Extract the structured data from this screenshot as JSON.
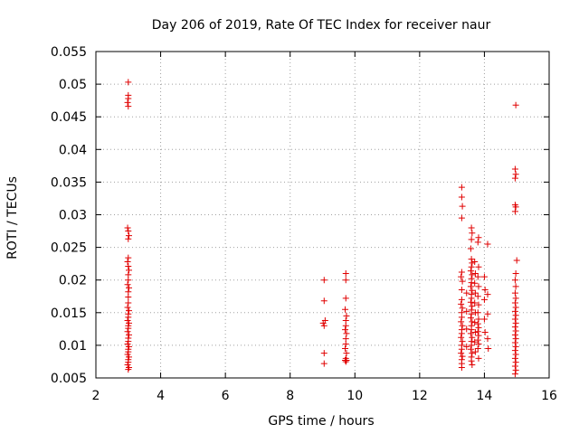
{
  "chart_data": {
    "type": "scatter",
    "title": "Day 206 of 2019, Rate Of TEC Index for receiver naur",
    "xlabel": "GPS time / hours",
    "ylabel": "ROTI / TECUs",
    "xlim": [
      2,
      16
    ],
    "ylim": [
      0.005,
      0.055
    ],
    "xticks": [
      2,
      4,
      6,
      8,
      10,
      12,
      14,
      16
    ],
    "xtick_labels": [
      "2",
      "4",
      "6",
      "8",
      "10",
      "12",
      "14",
      "16"
    ],
    "yticks": [
      0.005,
      0.01,
      0.015,
      0.02,
      0.025,
      0.03,
      0.035,
      0.04,
      0.045,
      0.05,
      0.055
    ],
    "ytick_labels": [
      "0.005",
      "0.01",
      "0.015",
      "0.02",
      "0.025",
      "0.03",
      "0.035",
      "0.04",
      "0.045",
      "0.05",
      "0.055"
    ],
    "grid": true,
    "marker": "+",
    "marker_color": "#e00000",
    "series": [
      {
        "name": "ROTI",
        "points": [
          [
            3.0,
            0.0503
          ],
          [
            3.0,
            0.0483
          ],
          [
            3.0,
            0.0478
          ],
          [
            2.98,
            0.0472
          ],
          [
            3.0,
            0.0466
          ],
          [
            2.98,
            0.028
          ],
          [
            3.0,
            0.0275
          ],
          [
            3.02,
            0.0268
          ],
          [
            3.0,
            0.0263
          ],
          [
            3.0,
            0.0234
          ],
          [
            2.98,
            0.0228
          ],
          [
            3.0,
            0.0221
          ],
          [
            3.02,
            0.0215
          ],
          [
            3.0,
            0.0208
          ],
          [
            3.0,
            0.02
          ],
          [
            2.98,
            0.0193
          ],
          [
            3.02,
            0.0188
          ],
          [
            3.0,
            0.0182
          ],
          [
            3.0,
            0.0174
          ],
          [
            3.0,
            0.0165
          ],
          [
            2.98,
            0.0158
          ],
          [
            3.02,
            0.0153
          ],
          [
            3.0,
            0.0148
          ],
          [
            3.0,
            0.0143
          ],
          [
            2.98,
            0.0138
          ],
          [
            3.02,
            0.0134
          ],
          [
            3.0,
            0.013
          ],
          [
            3.0,
            0.0126
          ],
          [
            2.98,
            0.0121
          ],
          [
            3.02,
            0.0116
          ],
          [
            3.0,
            0.0111
          ],
          [
            3.0,
            0.0106
          ],
          [
            2.98,
            0.0102
          ],
          [
            3.02,
            0.0098
          ],
          [
            3.0,
            0.0094
          ],
          [
            3.0,
            0.009
          ],
          [
            2.98,
            0.0086
          ],
          [
            3.02,
            0.0082
          ],
          [
            3.0,
            0.0078
          ],
          [
            3.0,
            0.0074
          ],
          [
            2.98,
            0.007
          ],
          [
            3.02,
            0.0066
          ],
          [
            3.0,
            0.0063
          ],
          [
            9.05,
            0.02
          ],
          [
            9.05,
            0.0168
          ],
          [
            9.08,
            0.0138
          ],
          [
            9.02,
            0.0134
          ],
          [
            9.05,
            0.013
          ],
          [
            9.05,
            0.0088
          ],
          [
            9.05,
            0.0072
          ],
          [
            9.72,
            0.021
          ],
          [
            9.72,
            0.02
          ],
          [
            9.72,
            0.0172
          ],
          [
            9.7,
            0.0155
          ],
          [
            9.74,
            0.0145
          ],
          [
            9.72,
            0.0138
          ],
          [
            9.72,
            0.013
          ],
          [
            9.7,
            0.0124
          ],
          [
            9.74,
            0.0118
          ],
          [
            9.72,
            0.011
          ],
          [
            9.72,
            0.0102
          ],
          [
            9.7,
            0.0095
          ],
          [
            9.74,
            0.0088
          ],
          [
            9.72,
            0.008
          ],
          [
            9.7,
            0.0077
          ],
          [
            9.74,
            0.0077
          ],
          [
            9.72,
            0.0075
          ],
          [
            13.3,
            0.0342
          ],
          [
            13.3,
            0.0327
          ],
          [
            13.32,
            0.0313
          ],
          [
            13.3,
            0.0295
          ],
          [
            13.3,
            0.0212
          ],
          [
            13.28,
            0.0205
          ],
          [
            13.32,
            0.0198
          ],
          [
            13.3,
            0.0185
          ],
          [
            13.3,
            0.017
          ],
          [
            13.28,
            0.0163
          ],
          [
            13.32,
            0.0157
          ],
          [
            13.3,
            0.015
          ],
          [
            13.3,
            0.0143
          ],
          [
            13.28,
            0.0136
          ],
          [
            13.32,
            0.013
          ],
          [
            13.3,
            0.0124
          ],
          [
            13.3,
            0.0118
          ],
          [
            13.28,
            0.0112
          ],
          [
            13.32,
            0.0106
          ],
          [
            13.3,
            0.01
          ],
          [
            13.3,
            0.0094
          ],
          [
            13.28,
            0.0088
          ],
          [
            13.32,
            0.0083
          ],
          [
            13.3,
            0.0078
          ],
          [
            13.3,
            0.0072
          ],
          [
            13.3,
            0.0066
          ],
          [
            13.45,
            0.018
          ],
          [
            13.45,
            0.0152
          ],
          [
            13.45,
            0.0125
          ],
          [
            13.45,
            0.0098
          ],
          [
            13.6,
            0.028
          ],
          [
            13.62,
            0.0272
          ],
          [
            13.6,
            0.0262
          ],
          [
            13.58,
            0.0248
          ],
          [
            13.6,
            0.0232
          ],
          [
            13.62,
            0.0226
          ],
          [
            13.6,
            0.022
          ],
          [
            13.58,
            0.0214
          ],
          [
            13.62,
            0.0208
          ],
          [
            13.6,
            0.0202
          ],
          [
            13.6,
            0.0196
          ],
          [
            13.58,
            0.019
          ],
          [
            13.62,
            0.0184
          ],
          [
            13.6,
            0.0178
          ],
          [
            13.6,
            0.0172
          ],
          [
            13.58,
            0.0166
          ],
          [
            13.62,
            0.016
          ],
          [
            13.6,
            0.0154
          ],
          [
            13.6,
            0.0148
          ],
          [
            13.58,
            0.0142
          ],
          [
            13.62,
            0.0136
          ],
          [
            13.6,
            0.013
          ],
          [
            13.6,
            0.0124
          ],
          [
            13.58,
            0.0118
          ],
          [
            13.62,
            0.0112
          ],
          [
            13.6,
            0.0106
          ],
          [
            13.6,
            0.01
          ],
          [
            13.58,
            0.0094
          ],
          [
            13.62,
            0.0088
          ],
          [
            13.6,
            0.0082
          ],
          [
            13.6,
            0.0076
          ],
          [
            13.62,
            0.007
          ],
          [
            13.7,
            0.0228
          ],
          [
            13.72,
            0.021
          ],
          [
            13.7,
            0.0195
          ],
          [
            13.72,
            0.018
          ],
          [
            13.7,
            0.0165
          ],
          [
            13.72,
            0.015
          ],
          [
            13.7,
            0.0135
          ],
          [
            13.72,
            0.012
          ],
          [
            13.7,
            0.0105
          ],
          [
            13.72,
            0.009
          ],
          [
            13.82,
            0.0265
          ],
          [
            13.8,
            0.0258
          ],
          [
            13.82,
            0.022
          ],
          [
            13.8,
            0.0205
          ],
          [
            13.82,
            0.019
          ],
          [
            13.8,
            0.0175
          ],
          [
            13.82,
            0.0162
          ],
          [
            13.8,
            0.015
          ],
          [
            13.82,
            0.014
          ],
          [
            13.8,
            0.0133
          ],
          [
            13.82,
            0.0127
          ],
          [
            13.8,
            0.0121
          ],
          [
            13.82,
            0.0115
          ],
          [
            13.8,
            0.0108
          ],
          [
            13.82,
            0.0102
          ],
          [
            13.8,
            0.0095
          ],
          [
            13.82,
            0.008
          ],
          [
            14.0,
            0.0205
          ],
          [
            14.02,
            0.0185
          ],
          [
            14.0,
            0.017
          ],
          [
            14.0,
            0.014
          ],
          [
            14.02,
            0.012
          ],
          [
            14.1,
            0.0255
          ],
          [
            14.1,
            0.0178
          ],
          [
            14.1,
            0.0148
          ],
          [
            14.1,
            0.011
          ],
          [
            14.12,
            0.0095
          ],
          [
            14.97,
            0.0468
          ],
          [
            14.95,
            0.037
          ],
          [
            14.97,
            0.0362
          ],
          [
            14.95,
            0.0356
          ],
          [
            14.95,
            0.0315
          ],
          [
            14.97,
            0.0312
          ],
          [
            14.95,
            0.0305
          ],
          [
            15.0,
            0.023
          ],
          [
            14.97,
            0.021
          ],
          [
            14.95,
            0.02
          ],
          [
            14.97,
            0.019
          ],
          [
            14.95,
            0.018
          ],
          [
            14.97,
            0.0172
          ],
          [
            14.95,
            0.0165
          ],
          [
            14.97,
            0.0158
          ],
          [
            14.95,
            0.0152
          ],
          [
            14.97,
            0.0146
          ],
          [
            14.95,
            0.014
          ],
          [
            14.97,
            0.0134
          ],
          [
            14.95,
            0.0128
          ],
          [
            14.97,
            0.0122
          ],
          [
            14.95,
            0.0116
          ],
          [
            14.97,
            0.011
          ],
          [
            14.95,
            0.0104
          ],
          [
            14.97,
            0.0098
          ],
          [
            14.95,
            0.0092
          ],
          [
            14.97,
            0.0086
          ],
          [
            14.95,
            0.008
          ],
          [
            14.97,
            0.0074
          ],
          [
            14.95,
            0.0068
          ],
          [
            14.97,
            0.0062
          ],
          [
            14.95,
            0.0056
          ]
        ]
      }
    ]
  }
}
